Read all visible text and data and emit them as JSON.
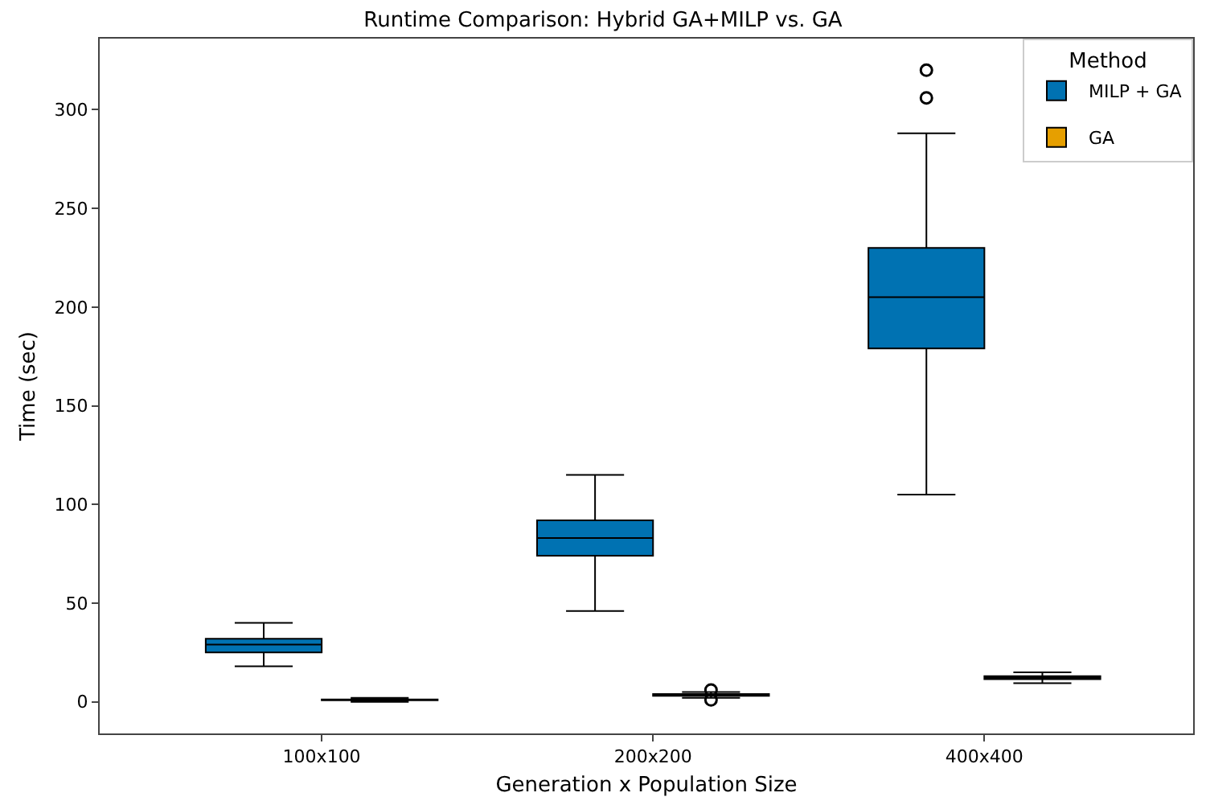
{
  "chart_data": {
    "type": "box",
    "title": "Runtime Comparison: Hybrid GA+MILP vs. GA",
    "xlabel": "Generation x Population Size",
    "ylabel": "Time (sec)",
    "legend_title": "Method",
    "legend": "top right",
    "grid": false,
    "categories": [
      "100x100",
      "200x200",
      "400x400"
    ],
    "ylim": [
      -16,
      336
    ],
    "yticks": [
      0,
      50,
      100,
      150,
      200,
      250,
      300
    ],
    "series": [
      {
        "name": "MILP + GA",
        "color": "#0072b2",
        "boxes": [
          {
            "low": 18,
            "q1": 25,
            "median": 29,
            "q3": 32,
            "high": 40
          },
          {
            "low": 46,
            "q1": 74,
            "median": 83,
            "q3": 92,
            "high": 115
          },
          {
            "low": 105,
            "q1": 179,
            "median": 205,
            "q3": 230,
            "high": 288,
            "outliers": [
              306,
              320
            ]
          }
        ]
      },
      {
        "name": "GA",
        "color": "#e69f00",
        "boxes": [
          {
            "low": 0,
            "q1": 0.8,
            "median": 1,
            "q3": 1.2,
            "high": 2
          },
          {
            "low": 2,
            "q1": 3,
            "median": 3.5,
            "q3": 4,
            "high": 5,
            "outliers": [
              1,
              6
            ]
          },
          {
            "low": 9.5,
            "q1": 11.5,
            "median": 12,
            "q3": 13,
            "high": 15
          }
        ]
      }
    ]
  }
}
